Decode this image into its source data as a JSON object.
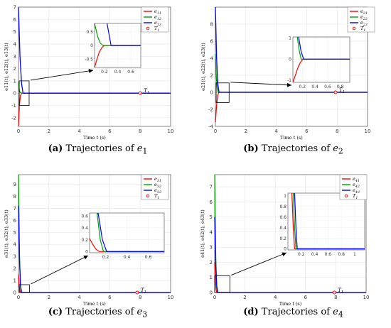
{
  "captions": [
    {
      "letter": "(a)",
      "text": " Trajectories of ",
      "var": "e",
      "sub": "1"
    },
    {
      "letter": "(b)",
      "text": " Trajectories of ",
      "var": "e",
      "sub": "2"
    },
    {
      "letter": "(c)",
      "text": " Trajectories of ",
      "var": "e",
      "sub": "3"
    },
    {
      "letter": "(d)",
      "text": " Trajectories of ",
      "var": "e",
      "sub": "4"
    }
  ],
  "chart_data": [
    {
      "type": "line",
      "xlabel": "Time t (s)",
      "ylabel": "e11(t), e12(t), e13(t)",
      "xlim": [
        0,
        10
      ],
      "ylim": [
        -2.7,
        7
      ],
      "xticks": [
        0,
        2,
        4,
        6,
        8,
        10
      ],
      "yticks": [
        -2,
        -1,
        0,
        1,
        2,
        3,
        4,
        5,
        6,
        7
      ],
      "grid": true,
      "legend_position": "top-right",
      "series": [
        {
          "name": "e11",
          "color": "#ff0000",
          "x": [
            0,
            0.06,
            0.12,
            0.2,
            10
          ],
          "y": [
            -2.7,
            -1.0,
            -0.25,
            0,
            0
          ]
        },
        {
          "name": "e12",
          "color": "#00a000",
          "x": [
            0,
            0.05,
            0.1,
            0.18,
            10
          ],
          "y": [
            0.9,
            0.3,
            0.08,
            0,
            0
          ]
        },
        {
          "name": "e13",
          "color": "#0000ff",
          "x": [
            0,
            0.1,
            0.2,
            0.3,
            10
          ],
          "y": [
            7,
            3.0,
            0.8,
            0,
            0
          ]
        }
      ],
      "settling_point": {
        "label": "T1",
        "x": 8,
        "y": 0
      },
      "zoom_box": {
        "x": [
          0.05,
          0.7
        ],
        "y": [
          -1.0,
          1.0
        ]
      },
      "inset": {
        "xlim": [
          0.05,
          0.75
        ],
        "ylim": [
          -0.8,
          0.8
        ],
        "xticks": [
          0.2,
          0.4,
          0.6
        ],
        "yticks": [
          -0.5,
          0,
          0.5
        ],
        "series": [
          {
            "color": "#ff0000",
            "x": [
              0.05,
              0.08,
              0.12,
              0.16,
              0.2,
              0.75
            ],
            "y": [
              -0.8,
              -0.55,
              -0.25,
              -0.08,
              0,
              0
            ]
          },
          {
            "color": "#00a000",
            "x": [
              0.05,
              0.1,
              0.14,
              0.18,
              0.75
            ],
            "y": [
              0.8,
              0.3,
              0.07,
              0,
              0
            ]
          },
          {
            "color": "#0000ff",
            "x": [
              0.24,
              0.3,
              0.75
            ],
            "y": [
              0.8,
              0,
              0
            ]
          }
        ]
      }
    },
    {
      "type": "line",
      "xlabel": "Time t (s)",
      "ylabel": "e21(t), e22(t), e23(t)",
      "xlim": [
        0,
        10
      ],
      "ylim": [
        -4,
        10
      ],
      "xticks": [
        0,
        2,
        4,
        6,
        8,
        10
      ],
      "yticks": [
        -4,
        -2,
        0,
        2,
        4,
        6,
        8
      ],
      "grid": true,
      "legend_position": "top-right",
      "series": [
        {
          "name": "e21",
          "color": "#ff0000",
          "x": [
            0,
            0.08,
            0.15,
            0.22,
            10
          ],
          "y": [
            -3.5,
            -1.5,
            -0.4,
            0,
            0
          ]
        },
        {
          "name": "e22",
          "color": "#00a000",
          "x": [
            0,
            0.06,
            0.12,
            0.18,
            10
          ],
          "y": [
            4.5,
            1.8,
            0.4,
            0,
            0
          ]
        },
        {
          "name": "e23",
          "color": "#0000ff",
          "x": [
            0,
            0.08,
            0.16,
            0.24,
            10
          ],
          "y": [
            10,
            4.0,
            1.0,
            0,
            0
          ]
        }
      ],
      "settling_point": {
        "label": "T1",
        "x": 7.9,
        "y": 0
      },
      "zoom_box": {
        "x": [
          0.05,
          0.9
        ],
        "y": [
          -1.2,
          1.1
        ]
      },
      "inset": {
        "xlim": [
          0.05,
          0.95
        ],
        "ylim": [
          -1.1,
          1.05
        ],
        "xticks": [
          0.2,
          0.4,
          0.6,
          0.8
        ],
        "yticks": [
          -1,
          0,
          1
        ],
        "series": [
          {
            "color": "#ff0000",
            "x": [
              0.05,
              0.09,
              0.13,
              0.17,
              0.21,
              0.95
            ],
            "y": [
              -1.1,
              -0.75,
              -0.4,
              -0.15,
              0,
              0
            ]
          },
          {
            "color": "#00a000",
            "x": [
              0.12,
              0.15,
              0.18,
              0.95
            ],
            "y": [
              1.05,
              0.4,
              0,
              0
            ]
          },
          {
            "color": "#0000ff",
            "x": [
              0.14,
              0.18,
              0.22,
              0.95
            ],
            "y": [
              1.05,
              0.35,
              0,
              0
            ]
          }
        ]
      }
    },
    {
      "type": "line",
      "xlabel": "Time t (s)",
      "ylabel": "e31(t), e32(t), e33(t)",
      "xlim": [
        0,
        10
      ],
      "ylim": [
        0,
        9.8
      ],
      "xticks": [
        0,
        2,
        4,
        6,
        8,
        10
      ],
      "yticks": [
        0,
        1,
        2,
        3,
        4,
        5,
        6,
        7,
        8,
        9
      ],
      "grid": true,
      "legend_position": "top-right",
      "series": [
        {
          "name": "e31",
          "color": "#ff0000",
          "x": [
            0,
            0.05,
            0.1,
            0.15,
            10
          ],
          "y": [
            1.5,
            0.5,
            0.1,
            0,
            0
          ]
        },
        {
          "name": "e32",
          "color": "#00a000",
          "x": [
            0,
            0.06,
            0.12,
            0.18,
            10
          ],
          "y": [
            9.8,
            3.5,
            0.6,
            0,
            0
          ]
        },
        {
          "name": "e33",
          "color": "#0000ff",
          "x": [
            0,
            0.07,
            0.14,
            0.21,
            10
          ],
          "y": [
            7.2,
            2.6,
            0.5,
            0,
            0
          ]
        }
      ],
      "settling_point": {
        "label": "T1",
        "x": 7.8,
        "y": 0
      },
      "zoom_box": {
        "x": [
          0.05,
          0.72
        ],
        "y": [
          0,
          0.65
        ]
      },
      "inset": {
        "xlim": [
          0.05,
          0.75
        ],
        "ylim": [
          -0.02,
          0.65
        ],
        "xticks": [
          0.2,
          0.4,
          0.6
        ],
        "yticks": [
          0,
          0.2,
          0.4,
          0.6
        ],
        "series": [
          {
            "color": "#ff0000",
            "x": [
              0.05,
              0.08,
              0.11,
              0.14,
              0.75
            ],
            "y": [
              0.22,
              0.12,
              0.04,
              0,
              0
            ]
          },
          {
            "color": "#00a000",
            "x": [
              0.12,
              0.15,
              0.18,
              0.75
            ],
            "y": [
              0.65,
              0.2,
              0,
              0
            ]
          },
          {
            "color": "#0000ff",
            "x": [
              0.13,
              0.17,
              0.21,
              0.75
            ],
            "y": [
              0.65,
              0.2,
              0,
              0
            ]
          }
        ]
      }
    },
    {
      "type": "line",
      "xlabel": "Time t (s)",
      "ylabel": "e41(t), e42(t), e43(t)",
      "xlim": [
        0,
        10
      ],
      "ylim": [
        0,
        7.8
      ],
      "xticks": [
        0,
        2,
        4,
        6,
        8,
        10
      ],
      "yticks": [
        0,
        1,
        2,
        3,
        4,
        5,
        6,
        7
      ],
      "grid": true,
      "legend_position": "top-right",
      "series": [
        {
          "name": "e41",
          "color": "#ff0000",
          "x": [
            0,
            0.05,
            0.1,
            0.15,
            10
          ],
          "y": [
            2.0,
            0.7,
            0.15,
            0,
            0
          ]
        },
        {
          "name": "e42",
          "color": "#00a000",
          "x": [
            0,
            0.06,
            0.12,
            0.18,
            10
          ],
          "y": [
            7.8,
            2.8,
            0.5,
            0,
            0
          ]
        },
        {
          "name": "e43",
          "color": "#0000ff",
          "x": [
            0,
            0.07,
            0.14,
            0.21,
            10
          ],
          "y": [
            5.0,
            1.8,
            0.4,
            0,
            0
          ]
        }
      ],
      "settling_point": {
        "label": "T1",
        "x": 7.9,
        "y": 0
      },
      "zoom_box": {
        "x": [
          0.0,
          1.0
        ],
        "y": [
          0,
          1.1
        ]
      },
      "inset": {
        "xlim": [
          0.0,
          1.15
        ],
        "ylim": [
          -0.02,
          1.05
        ],
        "xticks": [
          0.2,
          0.4,
          0.6,
          0.8,
          1
        ],
        "yticks": [
          0,
          0.2,
          0.4,
          0.6,
          0.8,
          1
        ],
        "series": [
          {
            "color": "#ff0000",
            "x": [
              0.06,
              0.08,
              0.1,
              1.15
            ],
            "y": [
              1.05,
              0.4,
              0,
              0
            ]
          },
          {
            "color": "#00a000",
            "x": [
              0.08,
              0.1,
              0.12,
              1.15
            ],
            "y": [
              1.05,
              0.4,
              0,
              0
            ]
          },
          {
            "color": "#0000ff",
            "x": [
              0.1,
              0.12,
              0.14,
              1.15
            ],
            "y": [
              1.05,
              0.4,
              0,
              0
            ]
          }
        ]
      }
    }
  ]
}
